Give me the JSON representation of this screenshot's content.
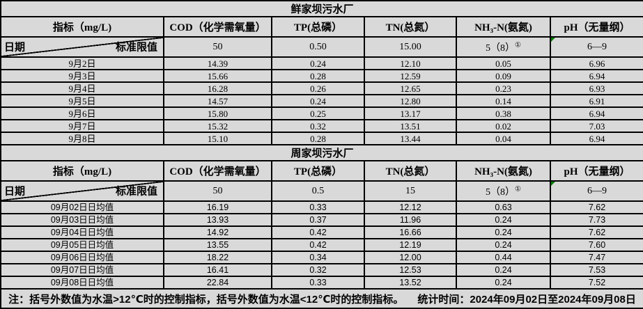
{
  "colors": {
    "cell_background": "#d9d9d9",
    "border": "#000000",
    "corner_marker_green": "#008000"
  },
  "sections": [
    {
      "title": "鲜家坝污水厂",
      "indicator_header": "指标（mg/L)",
      "column_headers": [
        "COD（化学需氧量）",
        "TP(总磷）",
        "TN(总氮）",
        "NH₃-N(氨氮)",
        "pH（无量纲）"
      ],
      "diagonal": {
        "bottom_left": "日期",
        "top_right": "标准限值"
      },
      "limits": [
        {
          "text": "50",
          "sup": "",
          "marker": false
        },
        {
          "text": "0.50",
          "sup": "",
          "marker": false
        },
        {
          "text": "15.00",
          "sup": "",
          "marker": false
        },
        {
          "text": "5（8）",
          "sup": "①",
          "marker": false
        },
        {
          "text": "6—9",
          "sup": "",
          "marker": true
        }
      ],
      "numeral_style": "serif",
      "rows": [
        {
          "date": "9月2日",
          "values": [
            "14.39",
            "0.24",
            "12.10",
            "0.05",
            "6.96"
          ]
        },
        {
          "date": "9月3日",
          "values": [
            "15.66",
            "0.28",
            "12.59",
            "0.09",
            "6.94"
          ]
        },
        {
          "date": "9月4日",
          "values": [
            "16.28",
            "0.26",
            "12.65",
            "0.23",
            "6.93"
          ]
        },
        {
          "date": "9月5日",
          "values": [
            "14.57",
            "0.24",
            "12.80",
            "0.14",
            "6.91"
          ]
        },
        {
          "date": "9月6日",
          "values": [
            "15.80",
            "0.25",
            "13.17",
            "0.38",
            "6.94"
          ]
        },
        {
          "date": "9月7日",
          "values": [
            "15.32",
            "0.32",
            "13.51",
            "0.02",
            "7.03"
          ]
        },
        {
          "date": "9月8日",
          "values": [
            "15.10",
            "0.28",
            "13.44",
            "0.04",
            "6.94"
          ]
        }
      ]
    },
    {
      "title": "周家坝污水厂",
      "indicator_header": "指标（mg/L)",
      "column_headers": [
        "COD（化学需氧量）",
        "TP(总磷）",
        "TN(总氮）",
        "NH₃-N(氨氮)",
        "pH（无量纲）"
      ],
      "diagonal": {
        "bottom_left": "日期",
        "top_right": "标准限值"
      },
      "limits": [
        {
          "text": "50",
          "sup": "",
          "marker": false
        },
        {
          "text": "0.5",
          "sup": "",
          "marker": false
        },
        {
          "text": "15",
          "sup": "",
          "marker": false
        },
        {
          "text": "5（8）",
          "sup": "①",
          "marker": false
        },
        {
          "text": "6—9",
          "sup": "",
          "marker": true
        }
      ],
      "numeral_style": "sans",
      "rows": [
        {
          "date": "09月02日日均值",
          "values": [
            "16.19",
            "0.33",
            "12.12",
            "0.63",
            "7.62"
          ]
        },
        {
          "date": "09月03日日均值",
          "values": [
            "13.93",
            "0.37",
            "11.96",
            "0.24",
            "7.73"
          ]
        },
        {
          "date": "09月04日日均值",
          "values": [
            "14.92",
            "0.42",
            "16.66",
            "0.24",
            "7.62"
          ]
        },
        {
          "date": "09月05日日均值",
          "values": [
            "13.55",
            "0.42",
            "12.19",
            "0.24",
            "7.60"
          ]
        },
        {
          "date": "09月06日日均值",
          "values": [
            "18.22",
            "0.34",
            "12.00",
            "0.44",
            "7.47"
          ]
        },
        {
          "date": "09月07日日均值",
          "values": [
            "16.41",
            "0.32",
            "12.53",
            "0.24",
            "7.53"
          ]
        },
        {
          "date": "09月08日日均值",
          "values": [
            "22.84",
            "0.33",
            "13.52",
            "0.24",
            "7.52"
          ]
        }
      ]
    }
  ],
  "footer": {
    "note": "注：括号外数值为水温>12℃时的控制指标，括号外数值为水温<12℃时的控制指标。",
    "stat": "统计时间：2024年09月02日至2024年09月08日"
  }
}
